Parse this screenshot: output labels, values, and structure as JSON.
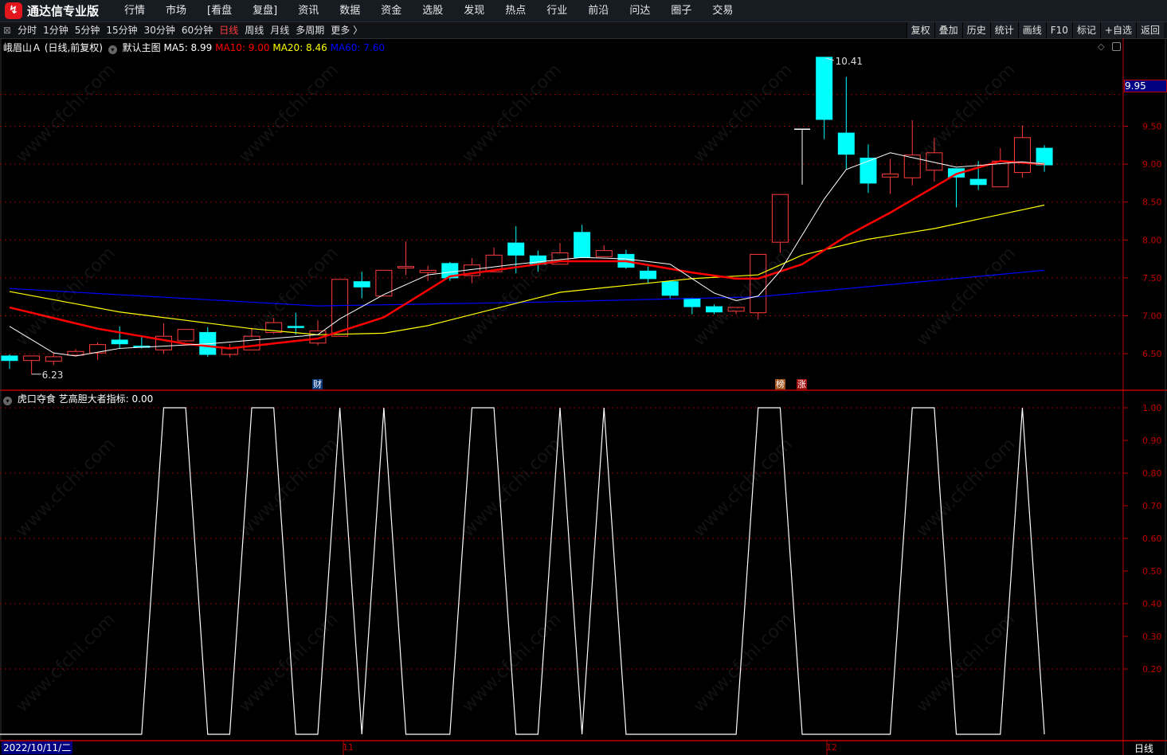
{
  "app": {
    "title": "通达信专业版",
    "logo_icon": "tdx-logo-icon"
  },
  "menu": [
    "行情",
    "市场",
    "[看盘",
    "复盘]",
    "资讯",
    "数据",
    "资金",
    "选股",
    "发现",
    "热点",
    "行业",
    "前沿",
    "问达",
    "圈子",
    "交易"
  ],
  "period_tabs": [
    "分时",
    "1分钟",
    "5分钟",
    "15分钟",
    "30分钟",
    "60分钟",
    "日线",
    "周线",
    "月线",
    "多周期",
    "更多 〉"
  ],
  "active_period": "日线",
  "tools": [
    "复权",
    "叠加",
    "历史",
    "统计",
    "画线",
    "F10",
    "标记",
    "+自选",
    "返回"
  ],
  "legend_main": {
    "stock": "峨眉山Ａ (日线,前复权)",
    "main_label": "默认主图",
    "ma5": "MA5: 8.99",
    "ma10": "MA10: 9.00",
    "ma20": "MA20: 8.46",
    "ma60": "MA60: 7.60"
  },
  "legend_indicator": {
    "label": "虎口夺食 艺高胆大者指标: 0.00"
  },
  "colors": {
    "up": "#ff3b3b",
    "down": "#00ffff",
    "ma5": "#ffffff",
    "ma10": "#ff0000",
    "ma20": "#ffff00",
    "ma60": "#0000ff",
    "grid": "#8b0000",
    "axis": "#c00000"
  },
  "last_price_label": "9.95",
  "date_axis": {
    "current": "2022/10/11/二",
    "months": [
      "11",
      "12"
    ],
    "period": "日线"
  },
  "event_marks": [
    {
      "text": "财",
      "color": "#0b3a7a"
    },
    {
      "text": "榜",
      "color": "#a0521a"
    },
    {
      "text": "涨",
      "color": "#a01010"
    }
  ],
  "watermark": "www.cfchi.com",
  "chart_data": [
    {
      "type": "candlestick",
      "title": "峨眉山Ａ (日线,前复权)",
      "y_ticks": [
        6.5,
        7.0,
        7.5,
        8.0,
        8.5,
        9.0,
        9.5
      ],
      "y_tick_labels": [
        "6.50",
        "7.00",
        "7.50",
        "8.00",
        "8.50",
        "9.00",
        "9.50"
      ],
      "ylim": [
        6.0,
        10.6
      ],
      "grid": true,
      "annotations": {
        "high": "10.41",
        "low": "6.23"
      },
      "candles": [
        [
          6.47,
          6.41,
          6.49,
          6.3
        ],
        [
          6.41,
          6.47,
          6.47,
          6.23
        ],
        [
          6.4,
          6.46,
          6.51,
          6.35
        ],
        [
          6.48,
          6.53,
          6.56,
          6.48
        ],
        [
          6.51,
          6.62,
          6.65,
          6.42
        ],
        [
          6.68,
          6.63,
          6.86,
          6.57
        ],
        [
          6.6,
          6.59,
          6.74,
          6.57
        ],
        [
          6.55,
          6.73,
          6.9,
          6.5
        ],
        [
          6.67,
          6.82,
          6.82,
          6.66
        ],
        [
          6.78,
          6.49,
          6.85,
          6.46
        ],
        [
          6.49,
          6.58,
          6.63,
          6.45
        ],
        [
          6.55,
          6.73,
          6.84,
          6.55
        ],
        [
          6.78,
          6.91,
          6.97,
          6.76
        ],
        [
          6.86,
          6.85,
          7.04,
          6.75
        ],
        [
          6.64,
          6.8,
          6.94,
          6.61
        ],
        [
          6.73,
          7.48,
          7.48,
          6.73
        ],
        [
          7.45,
          7.38,
          7.58,
          7.23
        ],
        [
          7.26,
          7.6,
          7.6,
          7.26
        ],
        [
          7.63,
          7.65,
          7.98,
          7.54
        ],
        [
          7.57,
          7.6,
          7.66,
          7.46
        ],
        [
          7.69,
          7.5,
          7.71,
          7.46
        ],
        [
          7.53,
          7.67,
          7.76,
          7.43
        ],
        [
          7.58,
          7.8,
          7.9,
          7.58
        ],
        [
          7.96,
          7.8,
          8.18,
          7.56
        ],
        [
          7.79,
          7.68,
          7.86,
          7.58
        ],
        [
          7.68,
          7.83,
          7.96,
          7.68
        ],
        [
          8.1,
          7.77,
          8.2,
          7.77
        ],
        [
          7.78,
          7.86,
          7.93,
          7.78
        ],
        [
          7.81,
          7.64,
          7.87,
          7.62
        ],
        [
          7.59,
          7.49,
          7.65,
          7.42
        ],
        [
          7.45,
          7.27,
          7.45,
          7.23
        ],
        [
          7.23,
          7.12,
          7.24,
          7.02
        ],
        [
          7.12,
          7.05,
          7.15,
          7.02
        ],
        [
          7.06,
          7.11,
          7.11,
          7.02
        ],
        [
          7.04,
          7.81,
          7.81,
          6.95
        ],
        [
          7.97,
          8.6,
          8.6,
          7.83
        ],
        [
          9.46,
          9.46,
          9.46,
          8.73
        ],
        [
          10.41,
          9.59,
          10.41,
          9.33
        ],
        [
          9.41,
          9.13,
          10.15,
          8.93
        ],
        [
          9.08,
          8.75,
          9.26,
          8.62
        ],
        [
          8.83,
          8.87,
          9.07,
          8.61
        ],
        [
          8.82,
          9.12,
          9.58,
          8.72
        ],
        [
          8.92,
          9.15,
          9.35,
          8.77
        ],
        [
          8.94,
          8.83,
          8.94,
          8.43
        ],
        [
          8.8,
          8.73,
          9.04,
          8.66
        ],
        [
          8.7,
          9.04,
          9.21,
          8.7
        ],
        [
          8.89,
          9.35,
          9.51,
          8.82
        ],
        [
          9.21,
          8.99,
          9.25,
          8.9
        ]
      ],
      "candle_fields": [
        "open",
        "close",
        "high",
        "low"
      ],
      "series": [
        {
          "name": "MA5",
          "points": [
            [
              1,
              6.86
            ],
            [
              3,
              6.51
            ],
            [
              4,
              6.47
            ],
            [
              6,
              6.57
            ],
            [
              10,
              6.63
            ],
            [
              15,
              6.75
            ],
            [
              16,
              6.96
            ],
            [
              18,
              7.28
            ],
            [
              20,
              7.54
            ],
            [
              24,
              7.68
            ],
            [
              27,
              7.77
            ],
            [
              29,
              7.75
            ],
            [
              31,
              7.68
            ],
            [
              33,
              7.3
            ],
            [
              34,
              7.2
            ],
            [
              35,
              7.26
            ],
            [
              36,
              7.59
            ],
            [
              38,
              8.54
            ],
            [
              39,
              8.93
            ],
            [
              41,
              9.15
            ],
            [
              44,
              8.96
            ],
            [
              47,
              9.03
            ],
            [
              48,
              9.0
            ]
          ]
        },
        {
          "name": "MA10",
          "points": [
            [
              1,
              7.11
            ],
            [
              5,
              6.83
            ],
            [
              9,
              6.63
            ],
            [
              11,
              6.57
            ],
            [
              15,
              6.7
            ],
            [
              18,
              6.98
            ],
            [
              21,
              7.52
            ],
            [
              26,
              7.72
            ],
            [
              29,
              7.72
            ],
            [
              32,
              7.57
            ],
            [
              34,
              7.49
            ],
            [
              35,
              7.49
            ],
            [
              37,
              7.68
            ],
            [
              39,
              8.05
            ],
            [
              41,
              8.36
            ],
            [
              44,
              8.87
            ],
            [
              46,
              9.04
            ],
            [
              48,
              9.0
            ]
          ]
        },
        {
          "name": "MA20",
          "points": [
            [
              1,
              7.32
            ],
            [
              6,
              7.05
            ],
            [
              12,
              6.83
            ],
            [
              15,
              6.75
            ],
            [
              18,
              6.77
            ],
            [
              20,
              6.87
            ],
            [
              26,
              7.31
            ],
            [
              32,
              7.49
            ],
            [
              35,
              7.54
            ],
            [
              37,
              7.8
            ],
            [
              40,
              8.01
            ],
            [
              43,
              8.15
            ],
            [
              48,
              8.46
            ]
          ]
        },
        {
          "name": "MA60",
          "points": [
            [
              1,
              7.36
            ],
            [
              15,
              7.13
            ],
            [
              25,
              7.18
            ],
            [
              35,
              7.25
            ],
            [
              48,
              7.6
            ]
          ]
        }
      ]
    },
    {
      "type": "line",
      "title": "虎口夺食 艺高胆大者指标",
      "y_ticks": [
        0.2,
        0.3,
        0.4,
        0.5,
        0.6,
        0.7,
        0.8,
        0.9,
        1.0
      ],
      "y_tick_labels": [
        "0.20",
        "0.30",
        "0.40",
        "0.50",
        "0.60",
        "0.70",
        "0.80",
        "0.90",
        "1.00"
      ],
      "ylim": [
        0,
        1
      ],
      "grid": true,
      "values": [
        0,
        0,
        0,
        0,
        0,
        0,
        0,
        1,
        1,
        0,
        0,
        1,
        1,
        0,
        0,
        1,
        0,
        1,
        0,
        0,
        0,
        1,
        1,
        0,
        0,
        1,
        0,
        1,
        0,
        0,
        0,
        0,
        0,
        0,
        1,
        1,
        0,
        0,
        0,
        0,
        0,
        1,
        1,
        0,
        0,
        0,
        1,
        0
      ]
    }
  ]
}
